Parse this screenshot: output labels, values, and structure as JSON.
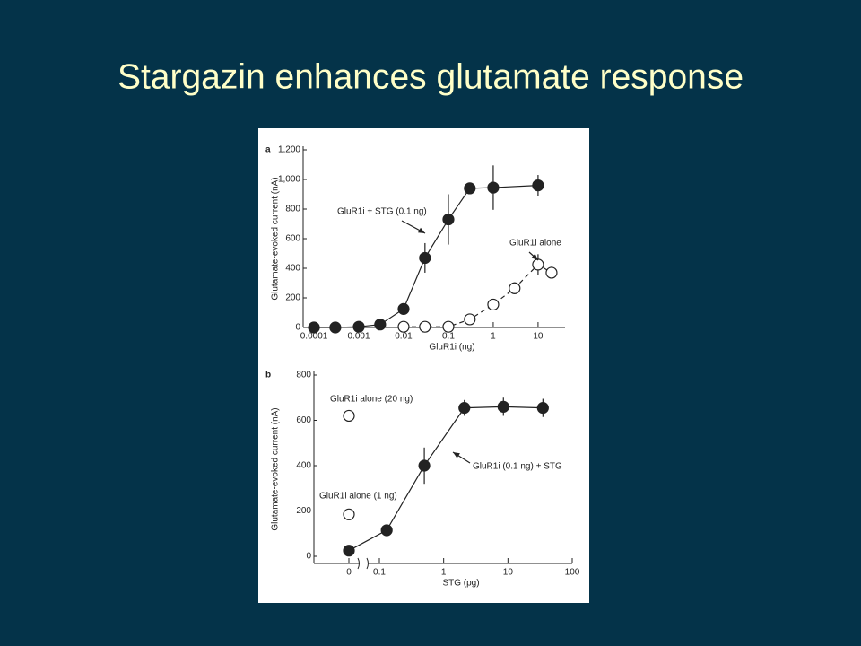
{
  "slide": {
    "title": "Stargazin enhances glutamate response"
  },
  "chart_data": [
    {
      "type": "scatter",
      "panel": "a",
      "y_label": "Glutamate-evoked current (nA)",
      "x_label": "GluR1i (ng)",
      "x_scale": "log",
      "xlim": [
        5e-05,
        40
      ],
      "xticks": [
        0.0001,
        0.001,
        0.01,
        0.1,
        1,
        10
      ],
      "ylim": [
        0,
        1200
      ],
      "yticks": [
        0,
        200,
        400,
        600,
        800,
        {
          "value": 1000,
          "label": "1,000"
        },
        {
          "value": 1200,
          "label": "1,200"
        }
      ],
      "series": [
        {
          "name": "GluR1i + STG (0.1 ng)",
          "color": "#222222",
          "marker": "filled",
          "line_style": "solid",
          "x": [
            0.0001,
            0.0003,
            0.001,
            0.003,
            0.01,
            0.03,
            0.1,
            0.3,
            1,
            10
          ],
          "values": [
            0,
            0,
            5,
            20,
            125,
            470,
            730,
            940,
            945,
            960
          ],
          "errors": [
            0,
            0,
            0,
            0,
            0,
            100,
            170,
            30,
            150,
            70
          ]
        },
        {
          "name": "GluR1i alone",
          "color": "#222222",
          "marker": "open",
          "line_style": "dashed",
          "x": [
            0.01,
            0.03,
            0.1,
            0.3,
            1,
            3,
            10,
            20
          ],
          "values": [
            5,
            5,
            5,
            55,
            155,
            265,
            425,
            370
          ],
          "errors": [
            0,
            0,
            0,
            0,
            20,
            40,
            70,
            40
          ]
        }
      ]
    },
    {
      "type": "scatter",
      "panel": "b",
      "y_label": "Glutamate-evoked current (nA)",
      "x_label": "STG (pg)",
      "x_scale": "log",
      "axis_break": true,
      "xlim": [
        0.1,
        100
      ],
      "xticks": [
        0,
        0.1,
        1,
        10,
        100
      ],
      "ylim": [
        0,
        800
      ],
      "yticks": [
        0,
        200,
        400,
        600,
        800
      ],
      "series": [
        {
          "name": "GluR1i (0.1 ng) + STG",
          "color": "#222222",
          "marker": "filled",
          "line_style": "solid",
          "x": [
            0,
            0.13,
            0.5,
            2.1,
            8.5,
            35
          ],
          "values": [
            25,
            115,
            400,
            655,
            660,
            655
          ],
          "errors": [
            0,
            0,
            80,
            35,
            40,
            40
          ]
        },
        {
          "name": "GluR1i alone (20 ng)",
          "color": "#222222",
          "marker": "open",
          "line_style": "none",
          "x": [
            0
          ],
          "values": [
            620
          ],
          "errors": [
            20
          ]
        },
        {
          "name": "GluR1i alone (1 ng)",
          "color": "#222222",
          "marker": "open",
          "line_style": "none",
          "x": [
            0
          ],
          "values": [
            185
          ],
          "errors": [
            20
          ]
        }
      ]
    }
  ]
}
